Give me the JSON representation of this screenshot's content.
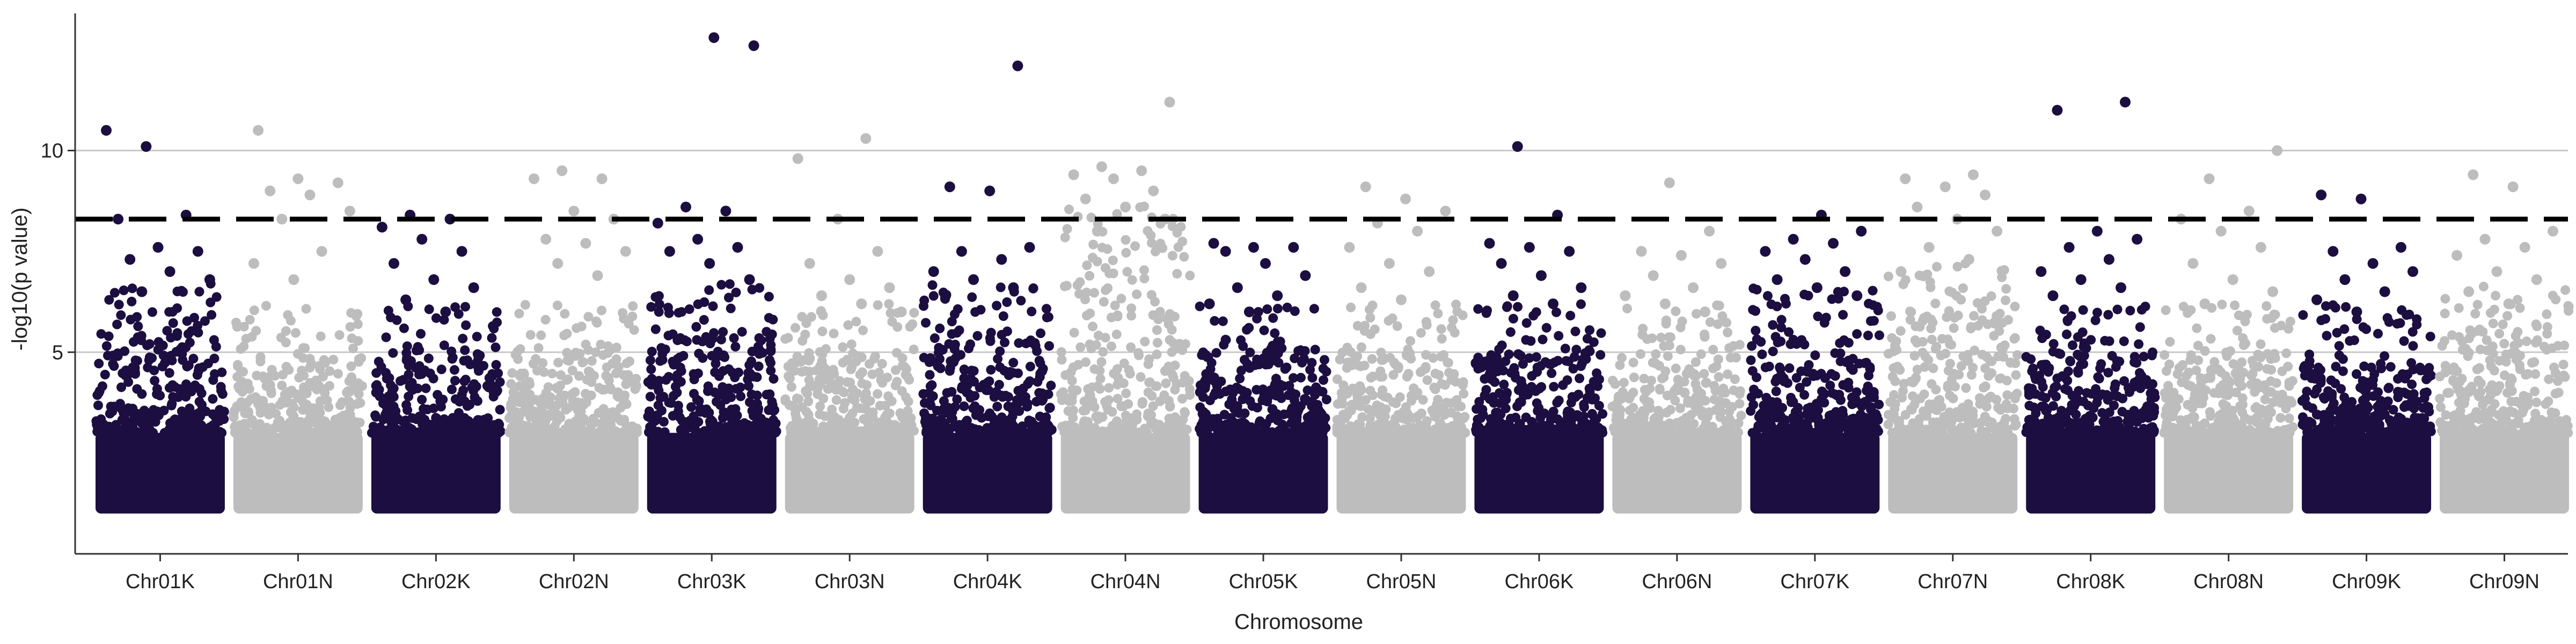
{
  "chart_data": {
    "type": "scatter",
    "subtype": "manhattan",
    "title": "",
    "xlabel": "Chromosome",
    "ylabel": "-log10(p value)",
    "categories": [
      "Chr01K",
      "Chr01N",
      "Chr02K",
      "Chr02N",
      "Chr03K",
      "Chr03N",
      "Chr04K",
      "Chr04N",
      "Chr05K",
      "Chr05N",
      "Chr06K",
      "Chr06N",
      "Chr07K",
      "Chr07N",
      "Chr08K",
      "Chr08N",
      "Chr09K",
      "Chr09N"
    ],
    "yticks": [
      5,
      10
    ],
    "ylim": [
      0,
      13.4
    ],
    "threshold": 8.3,
    "grid": "horizontal major",
    "colors": {
      "dark": "#1c0e40",
      "light": "#bdbdbd",
      "threshold": "#000000",
      "grid": "#c8c8c8",
      "axis": "#333333"
    },
    "chromosomes": [
      {
        "name": "Chr01K",
        "color": "dark",
        "bulk_top": 5.5,
        "top_hits": [
          10.5,
          10.1,
          8.4,
          8.3,
          7.6,
          7.5,
          7.3,
          7.0,
          6.8,
          6.5
        ]
      },
      {
        "name": "Chr01N",
        "color": "light",
        "bulk_top": 5.0,
        "top_hits": [
          10.5,
          9.3,
          9.2,
          9.0,
          8.9,
          8.5,
          8.3,
          7.5,
          7.2,
          6.8
        ]
      },
      {
        "name": "Chr02K",
        "color": "dark",
        "bulk_top": 5.0,
        "top_hits": [
          8.4,
          8.3,
          8.1,
          7.8,
          7.5,
          7.2,
          6.8,
          6.6,
          6.3,
          6.0
        ]
      },
      {
        "name": "Chr02N",
        "color": "light",
        "bulk_top": 5.0,
        "top_hits": [
          9.5,
          9.3,
          9.3,
          8.5,
          8.3,
          7.8,
          7.7,
          7.5,
          7.2,
          6.9
        ]
      },
      {
        "name": "Chr03K",
        "color": "dark",
        "bulk_top": 5.5,
        "top_hits": [
          12.8,
          12.6,
          8.6,
          8.5,
          8.2,
          7.8,
          7.6,
          7.5,
          7.2,
          6.8
        ]
      },
      {
        "name": "Chr03N",
        "color": "light",
        "bulk_top": 5.0,
        "top_hits": [
          10.3,
          9.8,
          8.3,
          7.5,
          7.2,
          6.8,
          6.6,
          6.4,
          6.2,
          6.0
        ]
      },
      {
        "name": "Chr04K",
        "color": "dark",
        "bulk_top": 5.5,
        "top_hits": [
          12.1,
          9.1,
          9.0,
          7.6,
          7.5,
          7.3,
          7.0,
          6.8,
          6.6,
          6.4
        ]
      },
      {
        "name": "Chr04N",
        "color": "light",
        "bulk_top": 7.5,
        "top_hits": [
          11.2,
          9.6,
          9.5,
          9.4,
          9.3,
          9.0,
          8.8,
          8.6,
          8.3,
          8.0
        ]
      },
      {
        "name": "Chr05K",
        "color": "dark",
        "bulk_top": 5.0,
        "top_hits": [
          7.7,
          7.6,
          7.6,
          7.5,
          7.2,
          6.9,
          6.6,
          6.4,
          6.2,
          6.0
        ]
      },
      {
        "name": "Chr05N",
        "color": "light",
        "bulk_top": 5.0,
        "top_hits": [
          9.1,
          8.8,
          8.5,
          8.2,
          8.0,
          7.6,
          7.2,
          7.0,
          6.6,
          6.3
        ]
      },
      {
        "name": "Chr06K",
        "color": "dark",
        "bulk_top": 5.0,
        "top_hits": [
          10.1,
          8.4,
          7.7,
          7.6,
          7.5,
          7.2,
          6.9,
          6.6,
          6.4,
          6.2
        ]
      },
      {
        "name": "Chr06N",
        "color": "light",
        "bulk_top": 5.0,
        "top_hits": [
          9.2,
          8.0,
          7.5,
          7.4,
          7.2,
          6.9,
          6.6,
          6.4,
          6.2,
          6.0
        ]
      },
      {
        "name": "Chr07K",
        "color": "dark",
        "bulk_top": 5.5,
        "top_hits": [
          8.4,
          8.0,
          7.8,
          7.7,
          7.5,
          7.3,
          7.0,
          6.8,
          6.6,
          6.4
        ]
      },
      {
        "name": "Chr07N",
        "color": "light",
        "bulk_top": 6.0,
        "top_hits": [
          9.4,
          9.3,
          9.1,
          8.9,
          8.6,
          8.3,
          8.0,
          7.6,
          7.3,
          7.0
        ]
      },
      {
        "name": "Chr08K",
        "color": "dark",
        "bulk_top": 5.0,
        "top_hits": [
          11.2,
          11.0,
          8.0,
          7.8,
          7.6,
          7.3,
          7.0,
          6.8,
          6.6,
          6.4
        ]
      },
      {
        "name": "Chr08N",
        "color": "light",
        "bulk_top": 5.0,
        "top_hits": [
          10.0,
          9.3,
          8.5,
          8.3,
          8.0,
          7.6,
          7.2,
          6.8,
          6.5,
          6.2
        ]
      },
      {
        "name": "Chr09K",
        "color": "dark",
        "bulk_top": 5.0,
        "top_hits": [
          8.9,
          8.8,
          7.6,
          7.5,
          7.2,
          7.0,
          6.8,
          6.5,
          6.3,
          6.0
        ]
      },
      {
        "name": "Chr09N",
        "color": "light",
        "bulk_top": 5.5,
        "top_hits": [
          9.4,
          9.1,
          8.0,
          7.8,
          7.6,
          7.4,
          7.0,
          6.8,
          6.5,
          6.2
        ]
      }
    ]
  }
}
